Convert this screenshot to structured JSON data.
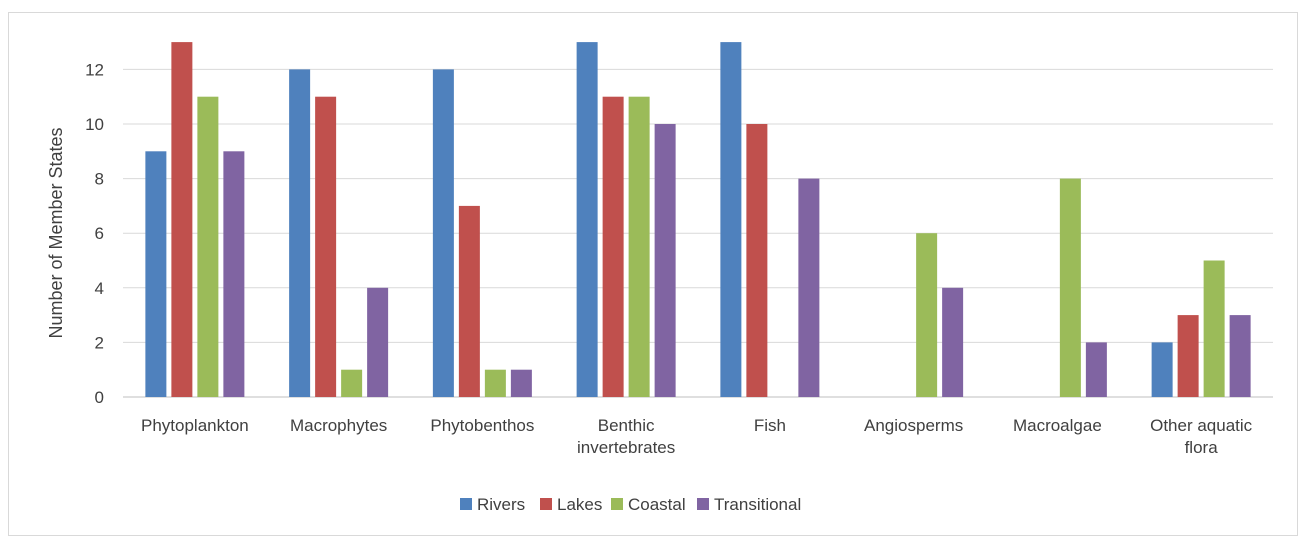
{
  "chart_data": {
    "type": "bar",
    "ylabel": "Number of Member States",
    "xlabel": "",
    "ylim": [
      0,
      13
    ],
    "yticks": [
      0,
      2,
      4,
      6,
      8,
      10,
      12
    ],
    "grid": true,
    "legend_position": "bottom",
    "categories": [
      [
        "Phytoplankton"
      ],
      [
        "Macrophytes"
      ],
      [
        "Phytobenthos"
      ],
      [
        "Benthic",
        "invertebrates"
      ],
      [
        "Fish"
      ],
      [
        "Angiosperms"
      ],
      [
        "Macroalgae"
      ],
      [
        "Other aquatic",
        "flora"
      ]
    ],
    "series": [
      {
        "name": "Rivers",
        "color": "#4f81bd",
        "values": [
          9,
          12,
          12,
          13,
          13,
          0,
          0,
          2
        ]
      },
      {
        "name": "Lakes",
        "color": "#c0504d",
        "values": [
          13,
          11,
          7,
          11,
          10,
          0,
          0,
          3
        ]
      },
      {
        "name": "Coastal",
        "color": "#9bbb59",
        "values": [
          11,
          1,
          1,
          11,
          0,
          6,
          8,
          5
        ]
      },
      {
        "name": "Transitional",
        "color": "#8064a2",
        "values": [
          9,
          4,
          1,
          10,
          8,
          4,
          2,
          3
        ]
      }
    ]
  }
}
